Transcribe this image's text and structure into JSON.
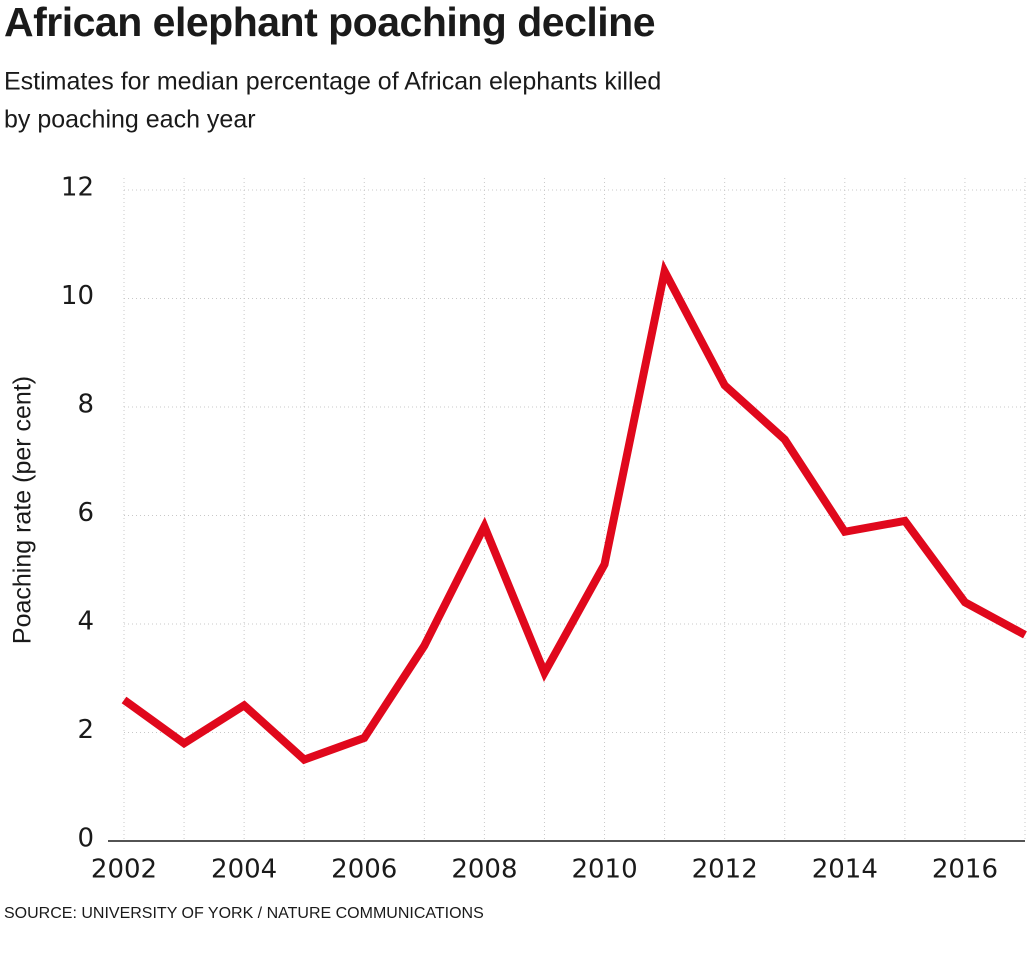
{
  "chart_data": {
    "type": "line",
    "title": "African elephant poaching decline",
    "subtitle": [
      "Estimates for median percentage of African elephants killed",
      "by poaching each year"
    ],
    "ylabel": "Poaching rate (per cent)",
    "source": "SOURCE: UNIVERSITY OF YORK / NATURE COMMUNICATIONS",
    "x": [
      2002,
      2003,
      2004,
      2005,
      2006,
      2007,
      2008,
      2009,
      2010,
      2011,
      2012,
      2013,
      2014,
      2015,
      2016,
      2017
    ],
    "series": [
      {
        "name": "Poaching rate",
        "color": "#e0081c",
        "values": [
          2.6,
          1.8,
          2.5,
          1.5,
          1.9,
          3.6,
          5.8,
          3.1,
          5.1,
          10.5,
          8.4,
          7.4,
          5.7,
          5.9,
          4.4,
          3.8
        ]
      }
    ],
    "xlim": [
      2002,
      2017
    ],
    "xticks": [
      2002,
      2004,
      2006,
      2008,
      2010,
      2012,
      2014,
      2016
    ],
    "xminorticks": [
      2003,
      2005,
      2007,
      2009,
      2011,
      2013,
      2015,
      2017
    ],
    "ylim": [
      0,
      12
    ],
    "yticks": [
      0,
      2,
      4,
      6,
      8,
      10,
      12
    ],
    "grid": true
  }
}
